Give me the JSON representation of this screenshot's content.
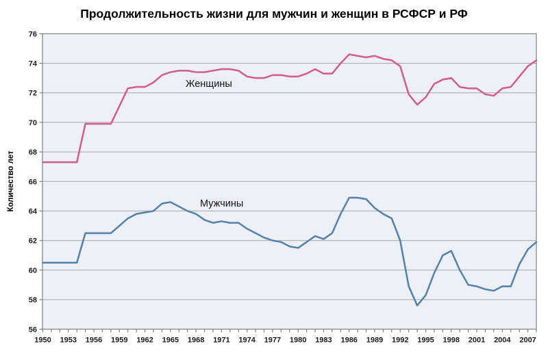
{
  "chart_data": {
    "type": "line",
    "title": "Продолжительность жизни для мужчин и женщин в РСФСР и РФ",
    "xlabel": "",
    "ylabel": "Количество лет",
    "ylim": [
      56,
      76
    ],
    "ytick_step": 2,
    "xtick_every_year": true,
    "xlabel_every_n_years": 3,
    "grid": true,
    "legend_position": "inline-labels",
    "plot_bg_color": "#edf1f7",
    "gridline_color": "#a6a6a6",
    "border_color": "#7f7f7f",
    "x": [
      1950,
      1951,
      1952,
      1953,
      1954,
      1955,
      1956,
      1957,
      1958,
      1959,
      1960,
      1961,
      1962,
      1963,
      1964,
      1965,
      1966,
      1967,
      1968,
      1969,
      1970,
      1971,
      1972,
      1973,
      1974,
      1975,
      1976,
      1977,
      1978,
      1979,
      1980,
      1981,
      1982,
      1983,
      1984,
      1985,
      1986,
      1987,
      1988,
      1989,
      1990,
      1991,
      1992,
      1993,
      1994,
      1995,
      1996,
      1997,
      1998,
      1999,
      2000,
      2001,
      2002,
      2003,
      2004,
      2005,
      2006,
      2007,
      2008
    ],
    "series": [
      {
        "name": "Женщины",
        "color": "#d0608f",
        "values": [
          67.3,
          67.3,
          67.3,
          67.3,
          67.3,
          69.9,
          69.9,
          69.9,
          69.9,
          71.1,
          72.3,
          72.4,
          72.4,
          72.7,
          73.2,
          73.4,
          73.5,
          73.5,
          73.4,
          73.4,
          73.5,
          73.6,
          73.6,
          73.5,
          73.1,
          73.0,
          73.0,
          73.2,
          73.2,
          73.1,
          73.1,
          73.3,
          73.6,
          73.3,
          73.3,
          74.0,
          74.6,
          74.5,
          74.4,
          74.5,
          74.3,
          74.2,
          73.8,
          71.9,
          71.2,
          71.7,
          72.6,
          72.9,
          73.0,
          72.4,
          72.3,
          72.3,
          71.9,
          71.8,
          72.3,
          72.4,
          73.1,
          73.8,
          74.2
        ]
      },
      {
        "name": "Мужчины",
        "color": "#5884ac",
        "values": [
          60.5,
          60.5,
          60.5,
          60.5,
          60.5,
          62.5,
          62.5,
          62.5,
          62.5,
          63.0,
          63.5,
          63.8,
          63.9,
          64.0,
          64.5,
          64.6,
          64.3,
          64.0,
          63.8,
          63.4,
          63.2,
          63.3,
          63.2,
          63.2,
          62.8,
          62.5,
          62.2,
          62.0,
          61.9,
          61.6,
          61.5,
          61.9,
          62.3,
          62.1,
          62.5,
          63.8,
          64.9,
          64.9,
          64.8,
          64.2,
          63.8,
          63.5,
          62.0,
          58.9,
          57.6,
          58.3,
          59.8,
          61.0,
          61.3,
          60.0,
          59.0,
          58.9,
          58.7,
          58.6,
          58.9,
          58.9,
          60.4,
          61.4,
          61.9
        ]
      }
    ]
  }
}
